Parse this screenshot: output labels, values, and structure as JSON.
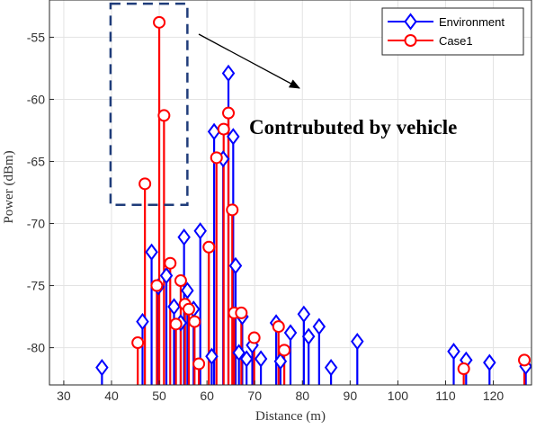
{
  "chart_data": {
    "type": "stem",
    "xlabel": "Distance (m)",
    "ylabel": "Power (dBm)",
    "xlim": [
      27,
      128
    ],
    "ylim": [
      -83,
      -52
    ],
    "xticks": [
      30,
      40,
      50,
      60,
      70,
      80,
      90,
      100,
      110,
      120
    ],
    "yticks": [
      -80,
      -75,
      -70,
      -65,
      -60,
      -55
    ],
    "grid": true,
    "legend_position": "top-right",
    "annotation": "Contrubuted by vehicle",
    "highlight_box_range": {
      "x": [
        39.8,
        55.9
      ],
      "y": [
        -68.5,
        -52.3
      ]
    },
    "series": [
      {
        "name": "Environment",
        "color": "#0000ff",
        "marker": "diamond",
        "x": [
          38,
          46.5,
          48.4,
          49.8,
          51.5,
          53.1,
          54.5,
          55.2,
          55.9,
          57.2,
          58.6,
          61,
          61.5,
          63.4,
          64.5,
          65.5,
          66,
          66.7,
          67.4,
          68.3,
          69.5,
          71.3,
          74.5,
          75.4,
          77.5,
          80.3,
          81.3,
          83.5,
          86,
          91.5,
          111.7,
          114.3,
          119.2,
          126.8
        ],
        "values": [
          -81.6,
          -77.9,
          -72.3,
          -75.1,
          -74.2,
          -76.7,
          -78,
          -71.1,
          -75.4,
          -76.9,
          -70.6,
          -80.7,
          -62.6,
          -64.8,
          -57.9,
          -63,
          -73.4,
          -80.4,
          -77.5,
          -80.9,
          -79.8,
          -80.9,
          -78,
          -81.1,
          -78.8,
          -77.3,
          -79.1,
          -78.3,
          -81.6,
          -79.5,
          -80.3,
          -81,
          -81.2,
          -81.5
        ]
      },
      {
        "name": "Case1",
        "color": "#ff0000",
        "marker": "circle",
        "x": [
          45.5,
          47,
          49.5,
          50,
          51,
          52.3,
          53.5,
          54.5,
          55.4,
          56.2,
          57.4,
          58.3,
          60.4,
          62,
          63.5,
          64.5,
          65.3,
          65.7,
          67.2,
          69.9,
          75,
          76.2,
          113.8,
          126.5
        ],
        "values": [
          -79.6,
          -66.8,
          -75,
          -53.8,
          -61.3,
          -73.2,
          -78.1,
          -74.6,
          -76.5,
          -76.9,
          -77.9,
          -81.3,
          -71.9,
          -64.7,
          -62.4,
          -61.1,
          -68.9,
          -77.2,
          -77.2,
          -79.2,
          -78.3,
          -80.2,
          -81.7,
          -81
        ]
      }
    ]
  }
}
